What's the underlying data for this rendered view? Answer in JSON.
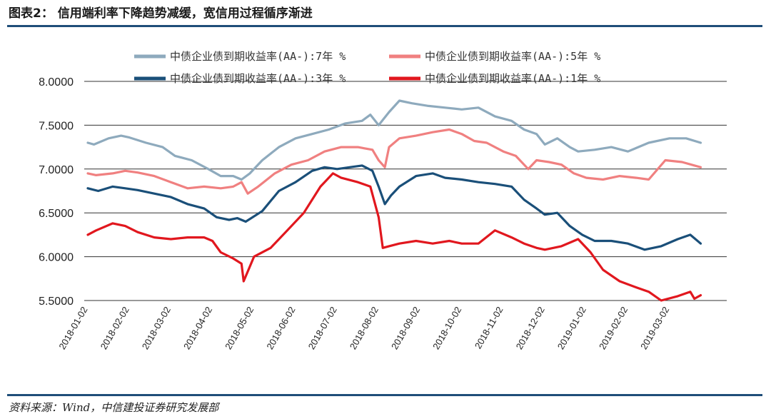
{
  "figure": {
    "title": "图表2：  信用端利率下降趋势减缓，宽信用过程循序渐进",
    "source": "资料来源：Wind，中信建投证券研究发展部"
  },
  "chart_data": {
    "type": "line",
    "ylim": [
      5.5,
      8.0
    ],
    "yticks": [
      "8.0000",
      "7.5000",
      "7.0000",
      "6.5000",
      "6.0000",
      "5.5000"
    ],
    "ytick_values": [
      8.0,
      7.5,
      7.0,
      6.5,
      6.0,
      5.5
    ],
    "grid": "horizontal",
    "legend_position": "top",
    "x_categories": [
      "2018-01-02",
      "2018-02-02",
      "2018-03-02",
      "2018-04-02",
      "2018-05-02",
      "2018-06-02",
      "2018-07-02",
      "2018-08-02",
      "2018-09-02",
      "2018-10-02",
      "2018-11-02",
      "2018-12-02",
      "2019-01-02",
      "2019-02-02",
      "2019-03-02"
    ],
    "series": [
      {
        "name": "中债企业债到期收益率(AA-):7年 %",
        "color": "#8eaabd",
        "x": [
          0,
          0.15,
          0.5,
          0.8,
          1.0,
          1.4,
          1.8,
          2.1,
          2.5,
          2.9,
          3.2,
          3.5,
          3.7,
          3.9,
          4.2,
          4.6,
          5.0,
          5.4,
          5.8,
          6.2,
          6.6,
          6.8,
          7.0,
          7.25,
          7.5,
          7.8,
          8.2,
          8.6,
          9.0,
          9.4,
          9.8,
          10.2,
          10.5,
          10.8,
          11.0,
          11.3,
          11.6,
          11.8,
          12.2,
          12.6,
          13.0,
          13.5,
          14.0,
          14.4,
          14.75
        ],
        "values": [
          7.3,
          7.28,
          7.35,
          7.38,
          7.36,
          7.3,
          7.25,
          7.15,
          7.1,
          7.0,
          6.92,
          6.92,
          6.88,
          6.95,
          7.1,
          7.25,
          7.35,
          7.4,
          7.45,
          7.52,
          7.55,
          7.62,
          7.5,
          7.65,
          7.78,
          7.75,
          7.72,
          7.7,
          7.68,
          7.7,
          7.6,
          7.55,
          7.45,
          7.4,
          7.28,
          7.35,
          7.25,
          7.2,
          7.22,
          7.25,
          7.2,
          7.3,
          7.35,
          7.35,
          7.3
        ]
      },
      {
        "name": "中债企业债到期收益率(AA-):5年 %",
        "color": "#f08080",
        "x": [
          0,
          0.2,
          0.6,
          0.9,
          1.2,
          1.6,
          2.0,
          2.4,
          2.8,
          3.2,
          3.5,
          3.7,
          3.85,
          4.1,
          4.5,
          4.9,
          5.3,
          5.7,
          6.1,
          6.5,
          6.85,
          7.0,
          7.15,
          7.25,
          7.5,
          7.9,
          8.3,
          8.7,
          9.0,
          9.3,
          9.6,
          10.0,
          10.3,
          10.6,
          10.8,
          11.1,
          11.4,
          11.7,
          12.0,
          12.4,
          12.8,
          13.2,
          13.5,
          13.9,
          14.3,
          14.75
        ],
        "values": [
          6.95,
          6.93,
          6.95,
          6.98,
          6.96,
          6.92,
          6.85,
          6.78,
          6.8,
          6.78,
          6.8,
          6.85,
          6.72,
          6.8,
          6.95,
          7.05,
          7.1,
          7.2,
          7.25,
          7.25,
          7.22,
          7.1,
          7.02,
          7.25,
          7.35,
          7.38,
          7.42,
          7.45,
          7.4,
          7.32,
          7.3,
          7.2,
          7.15,
          7.0,
          7.1,
          7.08,
          7.05,
          6.95,
          6.9,
          6.88,
          6.92,
          6.9,
          6.88,
          7.1,
          7.08,
          7.02
        ]
      },
      {
        "name": "中债企业债到期收益率(AA-):3年 %",
        "color": "#1a4f79",
        "x": [
          0,
          0.25,
          0.6,
          0.9,
          1.2,
          1.6,
          2.0,
          2.4,
          2.8,
          3.1,
          3.4,
          3.6,
          3.8,
          4.2,
          4.6,
          5.0,
          5.4,
          5.7,
          6.0,
          6.3,
          6.6,
          6.85,
          7.0,
          7.15,
          7.3,
          7.5,
          7.9,
          8.3,
          8.6,
          9.0,
          9.4,
          9.8,
          10.2,
          10.5,
          10.8,
          11.0,
          11.3,
          11.6,
          11.9,
          12.2,
          12.6,
          13.0,
          13.4,
          13.8,
          14.2,
          14.5,
          14.75
        ],
        "values": [
          6.78,
          6.75,
          6.8,
          6.78,
          6.76,
          6.72,
          6.68,
          6.6,
          6.55,
          6.45,
          6.42,
          6.44,
          6.4,
          6.52,
          6.75,
          6.85,
          6.98,
          7.02,
          7.0,
          7.02,
          7.04,
          6.98,
          6.8,
          6.6,
          6.7,
          6.8,
          6.92,
          6.95,
          6.9,
          6.88,
          6.85,
          6.83,
          6.8,
          6.65,
          6.55,
          6.48,
          6.5,
          6.35,
          6.25,
          6.18,
          6.18,
          6.15,
          6.08,
          6.12,
          6.2,
          6.25,
          6.15
        ]
      },
      {
        "name": "中债企业债到期收益率(AA-):1年 %",
        "color": "#e1171e",
        "x": [
          0,
          0.2,
          0.6,
          0.9,
          1.2,
          1.6,
          2.0,
          2.4,
          2.8,
          3.0,
          3.2,
          3.5,
          3.7,
          3.75,
          4.0,
          4.4,
          4.8,
          5.2,
          5.6,
          5.9,
          6.1,
          6.5,
          6.8,
          7.0,
          7.1,
          7.25,
          7.5,
          7.9,
          8.3,
          8.7,
          9.0,
          9.4,
          9.8,
          10.2,
          10.5,
          10.8,
          11.0,
          11.4,
          11.8,
          12.1,
          12.4,
          12.8,
          13.2,
          13.5,
          13.8,
          14.2,
          14.5,
          14.6,
          14.75
        ],
        "values": [
          6.25,
          6.3,
          6.38,
          6.35,
          6.28,
          6.22,
          6.2,
          6.22,
          6.22,
          6.18,
          6.05,
          5.98,
          5.92,
          5.72,
          6.0,
          6.1,
          6.3,
          6.5,
          6.8,
          6.95,
          6.9,
          6.85,
          6.8,
          6.45,
          6.1,
          6.12,
          6.15,
          6.18,
          6.15,
          6.18,
          6.15,
          6.15,
          6.3,
          6.22,
          6.15,
          6.1,
          6.08,
          6.12,
          6.2,
          6.05,
          5.85,
          5.72,
          5.65,
          5.6,
          5.5,
          5.55,
          5.6,
          5.52,
          5.56
        ]
      }
    ]
  }
}
